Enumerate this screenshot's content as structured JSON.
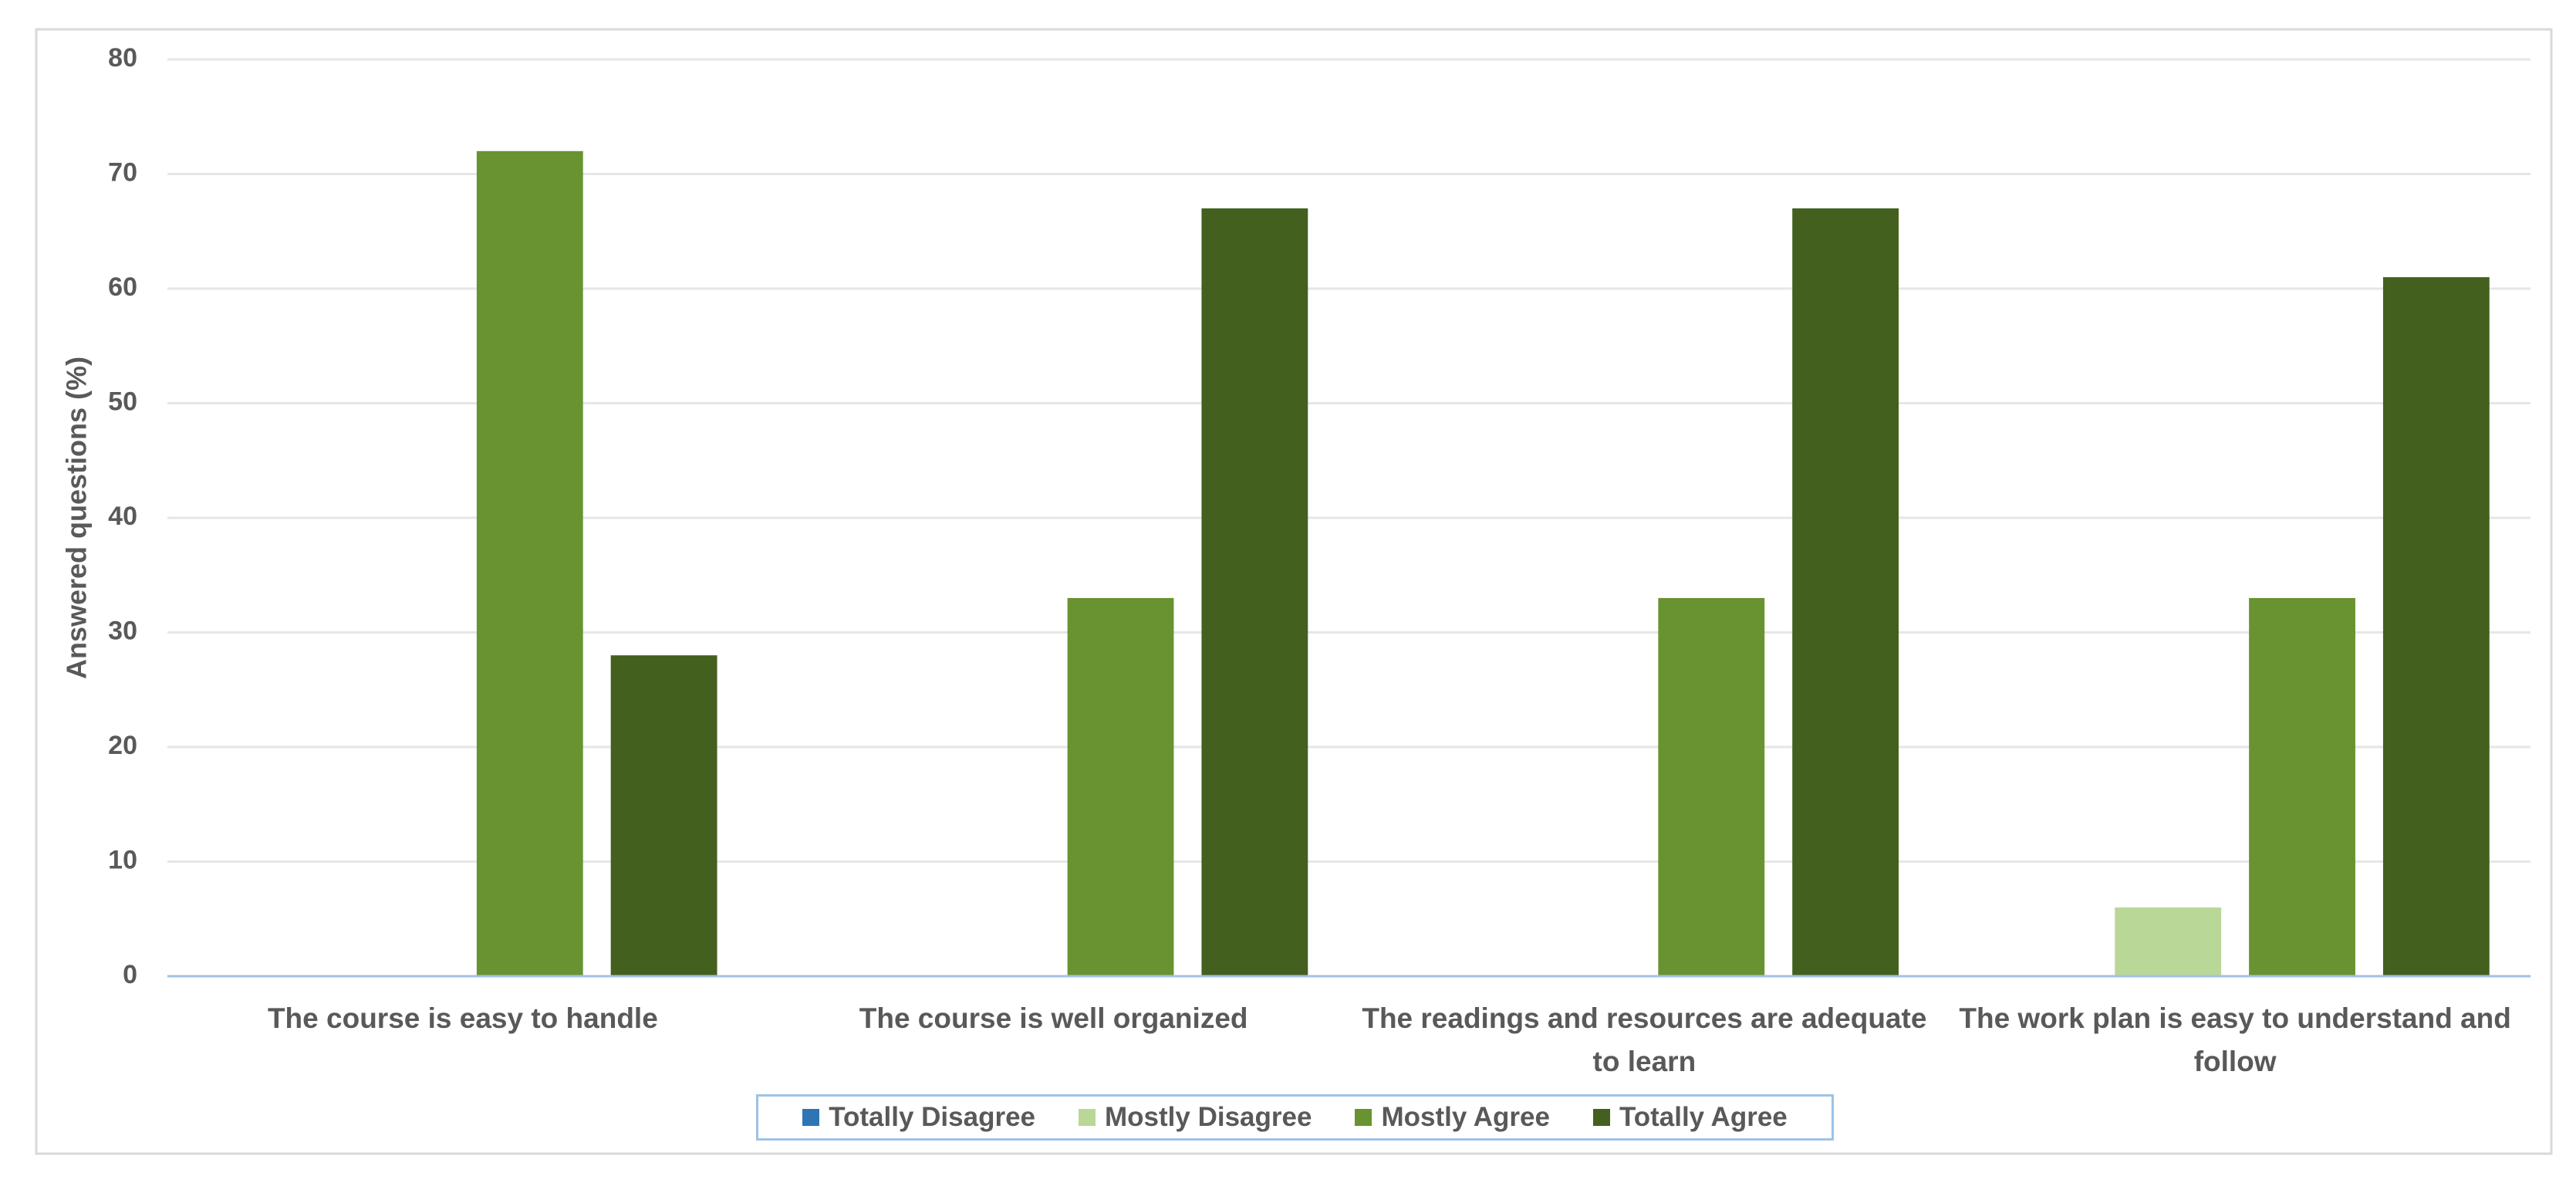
{
  "chart_data": {
    "type": "bar",
    "y_label": "Answered questions (%)",
    "categories": [
      "The course is easy to handle",
      "The course is well organized",
      "The readings and resources are adequate to learn",
      "The work plan is easy to understand and follow"
    ],
    "series": [
      {
        "name": "Totally Disagree",
        "color": "#2e75b6",
        "values": [
          0,
          0,
          0,
          0
        ]
      },
      {
        "name": "Mostly Disagree",
        "color": "#b9d897",
        "values": [
          0,
          0,
          0,
          6
        ]
      },
      {
        "name": "Mostly Agree",
        "color": "#699330",
        "values": [
          72,
          33,
          33,
          33
        ]
      },
      {
        "name": "Totally Agree",
        "color": "#43601e",
        "values": [
          28,
          67,
          67,
          61
        ]
      }
    ],
    "ylim": [
      0,
      80
    ],
    "yticks": [
      0,
      10,
      20,
      30,
      40,
      50,
      60,
      70,
      80
    ],
    "grid": true
  }
}
